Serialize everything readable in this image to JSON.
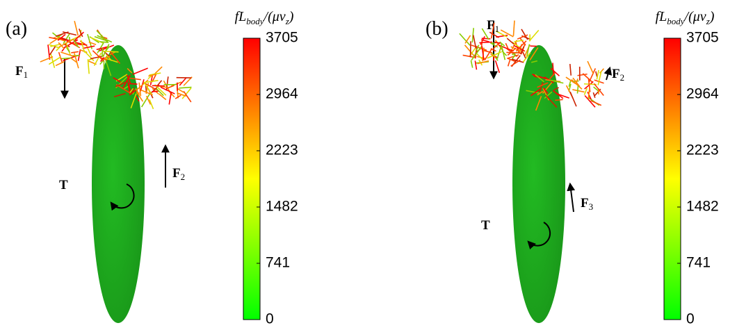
{
  "panels": [
    {
      "label": "(a)",
      "colorbar": {
        "title": [
          {
            "text": "fL"
          },
          {
            "text": "body",
            "sub": true
          },
          {
            "text": "/(μv"
          },
          {
            "text": "z",
            "sub": true
          },
          {
            "text": ")"
          }
        ],
        "lim": [
          0,
          3705
        ],
        "ticks": [
          0,
          741,
          1482,
          2223,
          2964,
          3705
        ],
        "colors": [
          "#00ff00",
          "#ffff00",
          "#ff0000"
        ]
      },
      "annotations": [
        {
          "text": "F",
          "sub": "1"
        },
        {
          "text": "F",
          "sub": "2"
        },
        {
          "text": "T"
        }
      ]
    },
    {
      "label": "(b)",
      "colorbar": {
        "title": [
          {
            "text": "fL"
          },
          {
            "text": "body",
            "sub": true
          },
          {
            "text": "/(μv"
          },
          {
            "text": "z",
            "sub": true
          },
          {
            "text": ")"
          }
        ],
        "lim": [
          0,
          3705
        ],
        "ticks": [
          0,
          741,
          1482,
          2223,
          2964,
          3705
        ],
        "colors": [
          "#00ff00",
          "#ffff00",
          "#ff0000"
        ]
      },
      "annotations": [
        {
          "text": "F",
          "sub": "1"
        },
        {
          "text": "F",
          "sub": "2"
        },
        {
          "text": "F",
          "sub": "3"
        },
        {
          "text": "T"
        }
      ]
    }
  ]
}
